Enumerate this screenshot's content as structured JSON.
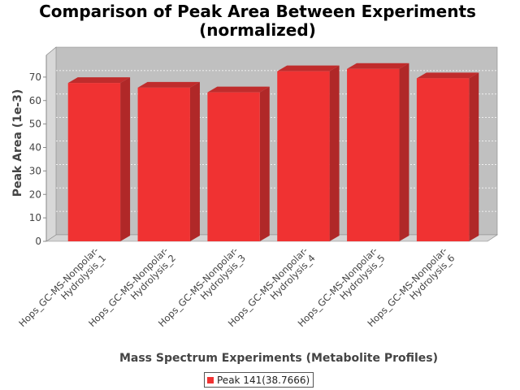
{
  "chart_data": {
    "type": "bar",
    "title_line1": "Comparison of Peak Area Between Experiments",
    "title_line2": "(normalized)",
    "xlabel": "Mass Spectrum Experiments (Metabolite Profiles)",
    "ylabel": "Peak Area (1e-3)",
    "categories": [
      [
        "Hops_GC-MS-Nonpolar-",
        "Hydrolysis_1"
      ],
      [
        "Hops_GC-MS-Nonpolar-",
        "Hydrolysis_2"
      ],
      [
        "Hops_GC-MS-Nonpolar-",
        "Hydrolysis_3"
      ],
      [
        "Hops_GC-MS-Nonpolar-",
        "Hydrolysis_4"
      ],
      [
        "Hops_GC-MS-Nonpolar-",
        "Hydrolysis_5"
      ],
      [
        "Hops_GC-MS-Nonpolar-",
        "Hydrolysis_6"
      ]
    ],
    "series": [
      {
        "name": "Peak 141(38.7666)",
        "values": [
          67.5,
          65.5,
          63.5,
          72.5,
          73.5,
          69.5
        ]
      }
    ],
    "ylim": [
      0,
      80
    ],
    "yticks": [
      0,
      10,
      20,
      30,
      40,
      50,
      60,
      70
    ],
    "grid": true,
    "legend_position": "bottom",
    "colors": {
      "bar_front": "#f03232",
      "bar_side": "#b02828",
      "bar_top": "#c02c2c",
      "plot_back": "#c0c0c0",
      "plot_floor": "#d4d4d4"
    }
  }
}
